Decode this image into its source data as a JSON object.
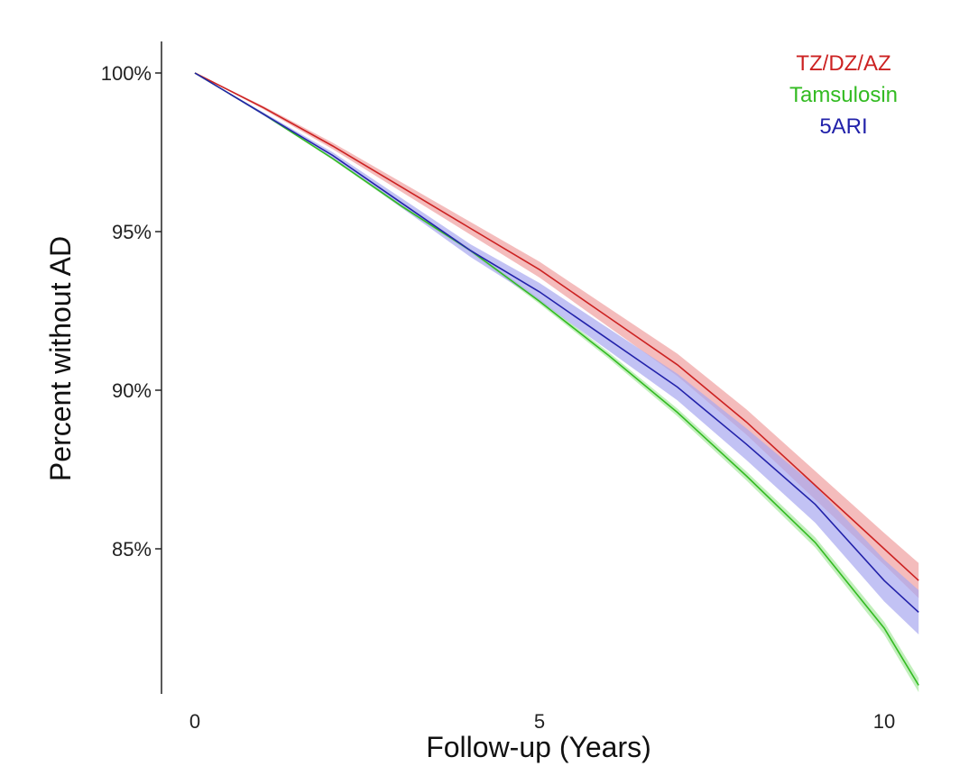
{
  "chart_data": {
    "type": "line",
    "title": "",
    "xlabel": "Follow-up (Years)",
    "ylabel": "Percent without AD",
    "xlim": [
      0,
      10.5
    ],
    "ylim": [
      80.5,
      101
    ],
    "xticks": [
      0,
      5,
      10
    ],
    "xtick_labels": [
      "0",
      "5",
      "10"
    ],
    "yticks": [
      100,
      95,
      90,
      85
    ],
    "ytick_labels": [
      "100%",
      "95%",
      "90%",
      "85%"
    ],
    "grid": false,
    "legend_position": "top-right",
    "series": [
      {
        "name": "TZ/DZ/AZ",
        "color": "#cc2222",
        "band_color": "#f0a0a0",
        "x": [
          0,
          1,
          2,
          3,
          4,
          5,
          6,
          7,
          8,
          9,
          10,
          10.5
        ],
        "y": [
          100.0,
          98.9,
          97.7,
          96.4,
          95.1,
          93.8,
          92.3,
          90.8,
          89.0,
          87.0,
          85.0,
          84.0
        ],
        "ci": [
          0.0,
          0.05,
          0.1,
          0.15,
          0.2,
          0.25,
          0.3,
          0.35,
          0.4,
          0.45,
          0.5,
          0.55
        ]
      },
      {
        "name": "Tamsulosin",
        "color": "#33bb22",
        "band_color": "#a8e8a0",
        "x": [
          0,
          1,
          2,
          3,
          4,
          5,
          6,
          7,
          8,
          9,
          10,
          10.5
        ],
        "y": [
          100.0,
          98.7,
          97.3,
          95.8,
          94.4,
          92.8,
          91.1,
          89.3,
          87.3,
          85.2,
          82.5,
          80.7
        ],
        "ci": [
          0.0,
          0.02,
          0.04,
          0.05,
          0.06,
          0.08,
          0.1,
          0.12,
          0.14,
          0.16,
          0.2,
          0.22
        ]
      },
      {
        "name": "5ARI",
        "color": "#2222aa",
        "band_color": "#a8a8f0",
        "x": [
          0,
          1,
          2,
          3,
          4,
          5,
          6,
          7,
          8,
          9,
          10,
          10.5
        ],
        "y": [
          100.0,
          98.7,
          97.4,
          95.9,
          94.4,
          93.1,
          91.6,
          90.1,
          88.3,
          86.4,
          84.0,
          83.0
        ],
        "ci": [
          0.0,
          0.05,
          0.1,
          0.15,
          0.2,
          0.28,
          0.35,
          0.42,
          0.5,
          0.58,
          0.66,
          0.7
        ]
      }
    ]
  }
}
